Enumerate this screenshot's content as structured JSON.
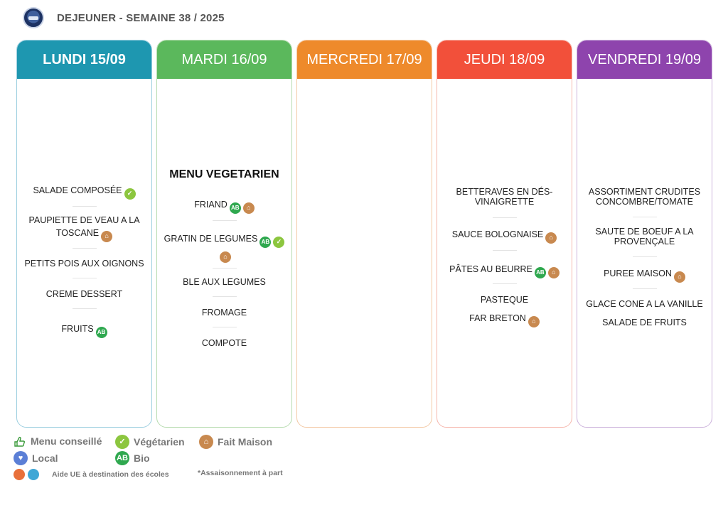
{
  "header": {
    "title": "DEJEUNER - SEMAINE 38 / 2025"
  },
  "days": [
    {
      "label": "LUNDI 15/09",
      "color": "#1e97b0",
      "items": [
        "SALADE COMPOSÉE",
        "PAUPIETTE DE VEAU A LA",
        "TOSCANE",
        "PETITS POIS AUX OIGNONS",
        "CREME DESSERT",
        "FRUITS"
      ]
    },
    {
      "label": "MARDI 16/09",
      "color": "#5bb85c",
      "menu_title": "MENU VEGETARIEN",
      "items": [
        "FRIAND",
        "GRATIN DE LEGUMES",
        "BLE AUX LEGUMES",
        "FROMAGE",
        "COMPOTE"
      ]
    },
    {
      "label": "MERCREDI 17/09",
      "color": "#ee8a2b",
      "items": []
    },
    {
      "label": "JEUDI 18/09",
      "color": "#f2503a",
      "items": [
        "BETTERAVES EN DÉS-",
        "VINAIGRETTE",
        "SAUCE BOLOGNAISE",
        "PÂTES AU BEURRE",
        "PASTEQUE",
        "FAR BRETON"
      ]
    },
    {
      "label": "VENDREDI 19/09",
      "color": "#8e44ad",
      "items": [
        "ASSORTIMENT CRUDITES",
        "CONCOMBRE/TOMATE",
        "SAUTE DE BOEUF A LA",
        "PROVENÇALE",
        "PUREE MAISON",
        "GLACE CONE A LA VANILLE",
        "SALADE DE FRUITS"
      ]
    }
  ],
  "legend": {
    "conseille": "Menu conseillé",
    "vegetarien": "Végétarien",
    "fait_maison": "Fait Maison",
    "local": "Local",
    "bio": "Bio",
    "aide_ue": "Aide UE à destination des écoles",
    "assaisonnement": "*Assaisonnement à part"
  },
  "icons": {
    "vegetarien": "leaf-icon",
    "bio": "organic-ab-icon",
    "fait_maison": "homemade-pot-icon",
    "local": "local-heart-icon",
    "conseille": "recommended-hand-icon"
  },
  "colors": {
    "vegetarien": "#8cc63f",
    "bio": "#2fa84f",
    "fait_maison": "#c8894f",
    "local": "#5b7fd6"
  }
}
